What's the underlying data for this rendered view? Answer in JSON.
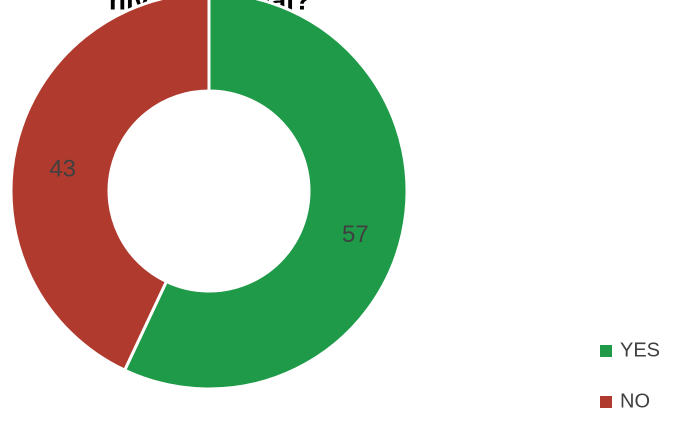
{
  "chart_data": {
    "type": "donut",
    "title": "nivel nacional?",
    "categories": [
      "YES",
      "NO"
    ],
    "values": [
      57,
      43
    ],
    "colors": [
      "#1e9a48",
      "#b03a2e"
    ],
    "legend": "right"
  }
}
